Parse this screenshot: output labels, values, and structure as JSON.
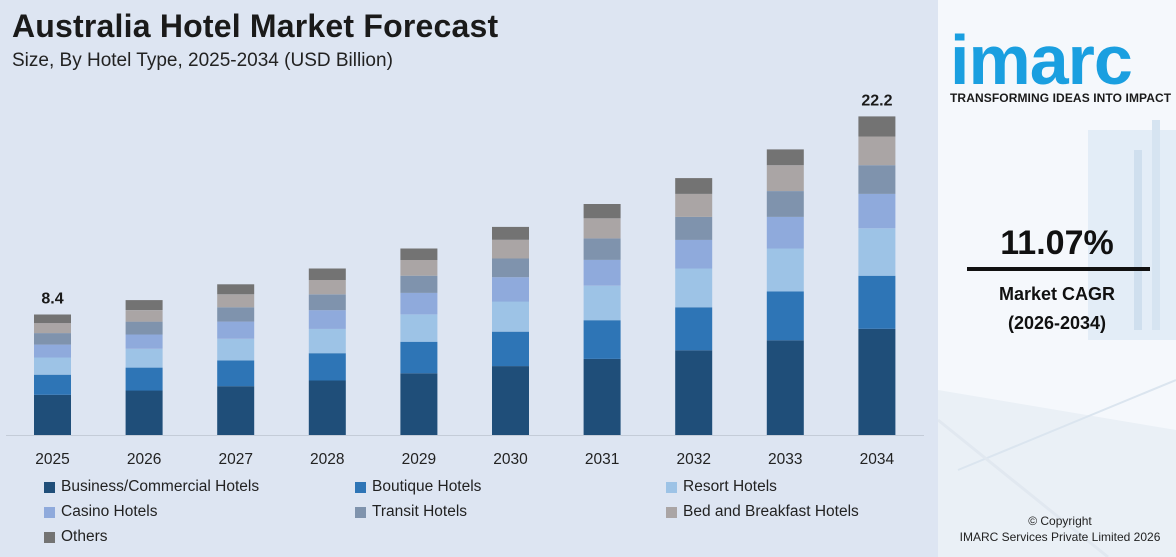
{
  "header": {
    "title": "Australia Hotel Market Forecast",
    "subtitle": "Size, By Hotel Type, 2025-2034 (USD Billion)"
  },
  "chart_data": {
    "type": "bar",
    "stacked": true,
    "categories": [
      "2025",
      "2026",
      "2027",
      "2028",
      "2029",
      "2030",
      "2031",
      "2032",
      "2033",
      "2034"
    ],
    "totals": [
      8.4,
      9.4,
      10.5,
      11.6,
      13.0,
      14.5,
      16.1,
      17.9,
      19.9,
      22.2
    ],
    "total_labels": {
      "2025": "8.4",
      "2034": "22.2"
    },
    "series": [
      {
        "name": "Business/Commercial Hotels",
        "color": "#1f4e79",
        "values": [
          2.8,
          3.1,
          3.4,
          3.8,
          4.3,
          4.8,
          5.3,
          5.9,
          6.6,
          7.4
        ]
      },
      {
        "name": "Boutique Hotels",
        "color": "#2e75b6",
        "values": [
          1.4,
          1.6,
          1.8,
          1.9,
          2.2,
          2.4,
          2.7,
          3.0,
          3.4,
          3.7
        ]
      },
      {
        "name": "Resort Hotels",
        "color": "#9dc3e6",
        "values": [
          1.2,
          1.3,
          1.5,
          1.7,
          1.9,
          2.1,
          2.4,
          2.7,
          3.0,
          3.3
        ]
      },
      {
        "name": "Casino Hotels",
        "color": "#8faadc",
        "values": [
          0.9,
          1.0,
          1.2,
          1.3,
          1.5,
          1.7,
          1.8,
          2.0,
          2.2,
          2.4
        ]
      },
      {
        "name": "Transit Hotels",
        "color": "#7f93ad",
        "values": [
          0.8,
          0.9,
          1.0,
          1.1,
          1.2,
          1.3,
          1.5,
          1.6,
          1.8,
          2.0
        ]
      },
      {
        "name": "Bed and Breakfast Hotels",
        "color": "#aaa5a5",
        "values": [
          0.7,
          0.8,
          0.9,
          1.0,
          1.1,
          1.3,
          1.4,
          1.6,
          1.8,
          2.0
        ]
      },
      {
        "name": "Others",
        "color": "#737373",
        "values": [
          0.6,
          0.7,
          0.7,
          0.8,
          0.8,
          0.9,
          1.0,
          1.1,
          1.1,
          1.4
        ]
      }
    ],
    "xlabel": "",
    "ylabel": "",
    "ylim": [
      0,
      24
    ],
    "grid": false,
    "legend": "bottom"
  },
  "brand": {
    "logo_text": "imarc",
    "tagline": "TRANSFORMING IDEAS INTO IMPACT",
    "color": "#1a9fe0"
  },
  "cagr": {
    "value": "11.07%",
    "label": "Market CAGR",
    "period": "(2026-2034)"
  },
  "footer": {
    "copyright": "© Copyright",
    "company": "IMARC Services Private Limited 2026"
  }
}
